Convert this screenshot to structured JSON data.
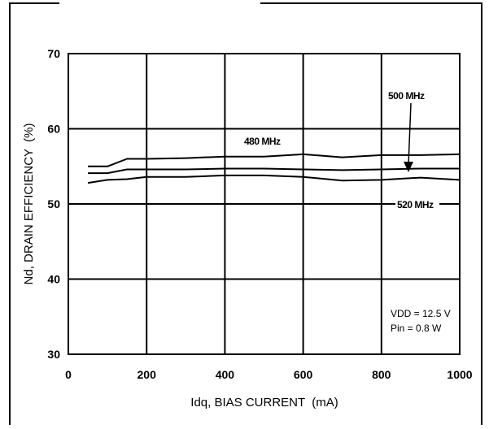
{
  "chart_data": {
    "type": "line",
    "title": "",
    "xlabel": "Idq, BIAS CURRENT  (mA)",
    "ylabel": "Nd, DRAIN EFFICIENCY  (%)",
    "xlim": [
      0,
      1000
    ],
    "ylim": [
      30,
      70
    ],
    "x_ticks": [
      0,
      200,
      400,
      600,
      800,
      1000
    ],
    "y_ticks": [
      30,
      40,
      50,
      60,
      70
    ],
    "grid": true,
    "series": [
      {
        "name": "480 MHz",
        "x": [
          50,
          100,
          150,
          200,
          300,
          400,
          500,
          600,
          700,
          800,
          900,
          1000
        ],
        "y": [
          55.0,
          55.0,
          56.0,
          56.0,
          56.1,
          56.3,
          56.3,
          56.6,
          56.2,
          56.5,
          56.5,
          56.6
        ]
      },
      {
        "name": "500 MHz",
        "x": [
          50,
          100,
          150,
          200,
          300,
          400,
          500,
          600,
          700,
          800,
          900,
          1000
        ],
        "y": [
          54.1,
          54.1,
          54.6,
          54.6,
          54.6,
          54.7,
          54.7,
          54.6,
          54.5,
          54.6,
          54.7,
          54.7
        ]
      },
      {
        "name": "520 MHz",
        "x": [
          50,
          100,
          150,
          200,
          300,
          400,
          500,
          600,
          700,
          800,
          900,
          1000
        ],
        "y": [
          52.8,
          53.2,
          53.3,
          53.6,
          53.6,
          53.8,
          53.8,
          53.6,
          53.1,
          53.2,
          53.5,
          53.2
        ]
      }
    ],
    "annotations": {
      "label_480": "480 MHz",
      "label_500": "500 MHz",
      "label_520": "520 MHz",
      "condition_vdd": "VDD = 12.5 V",
      "condition_pin": "Pin = 0.8 W"
    }
  }
}
